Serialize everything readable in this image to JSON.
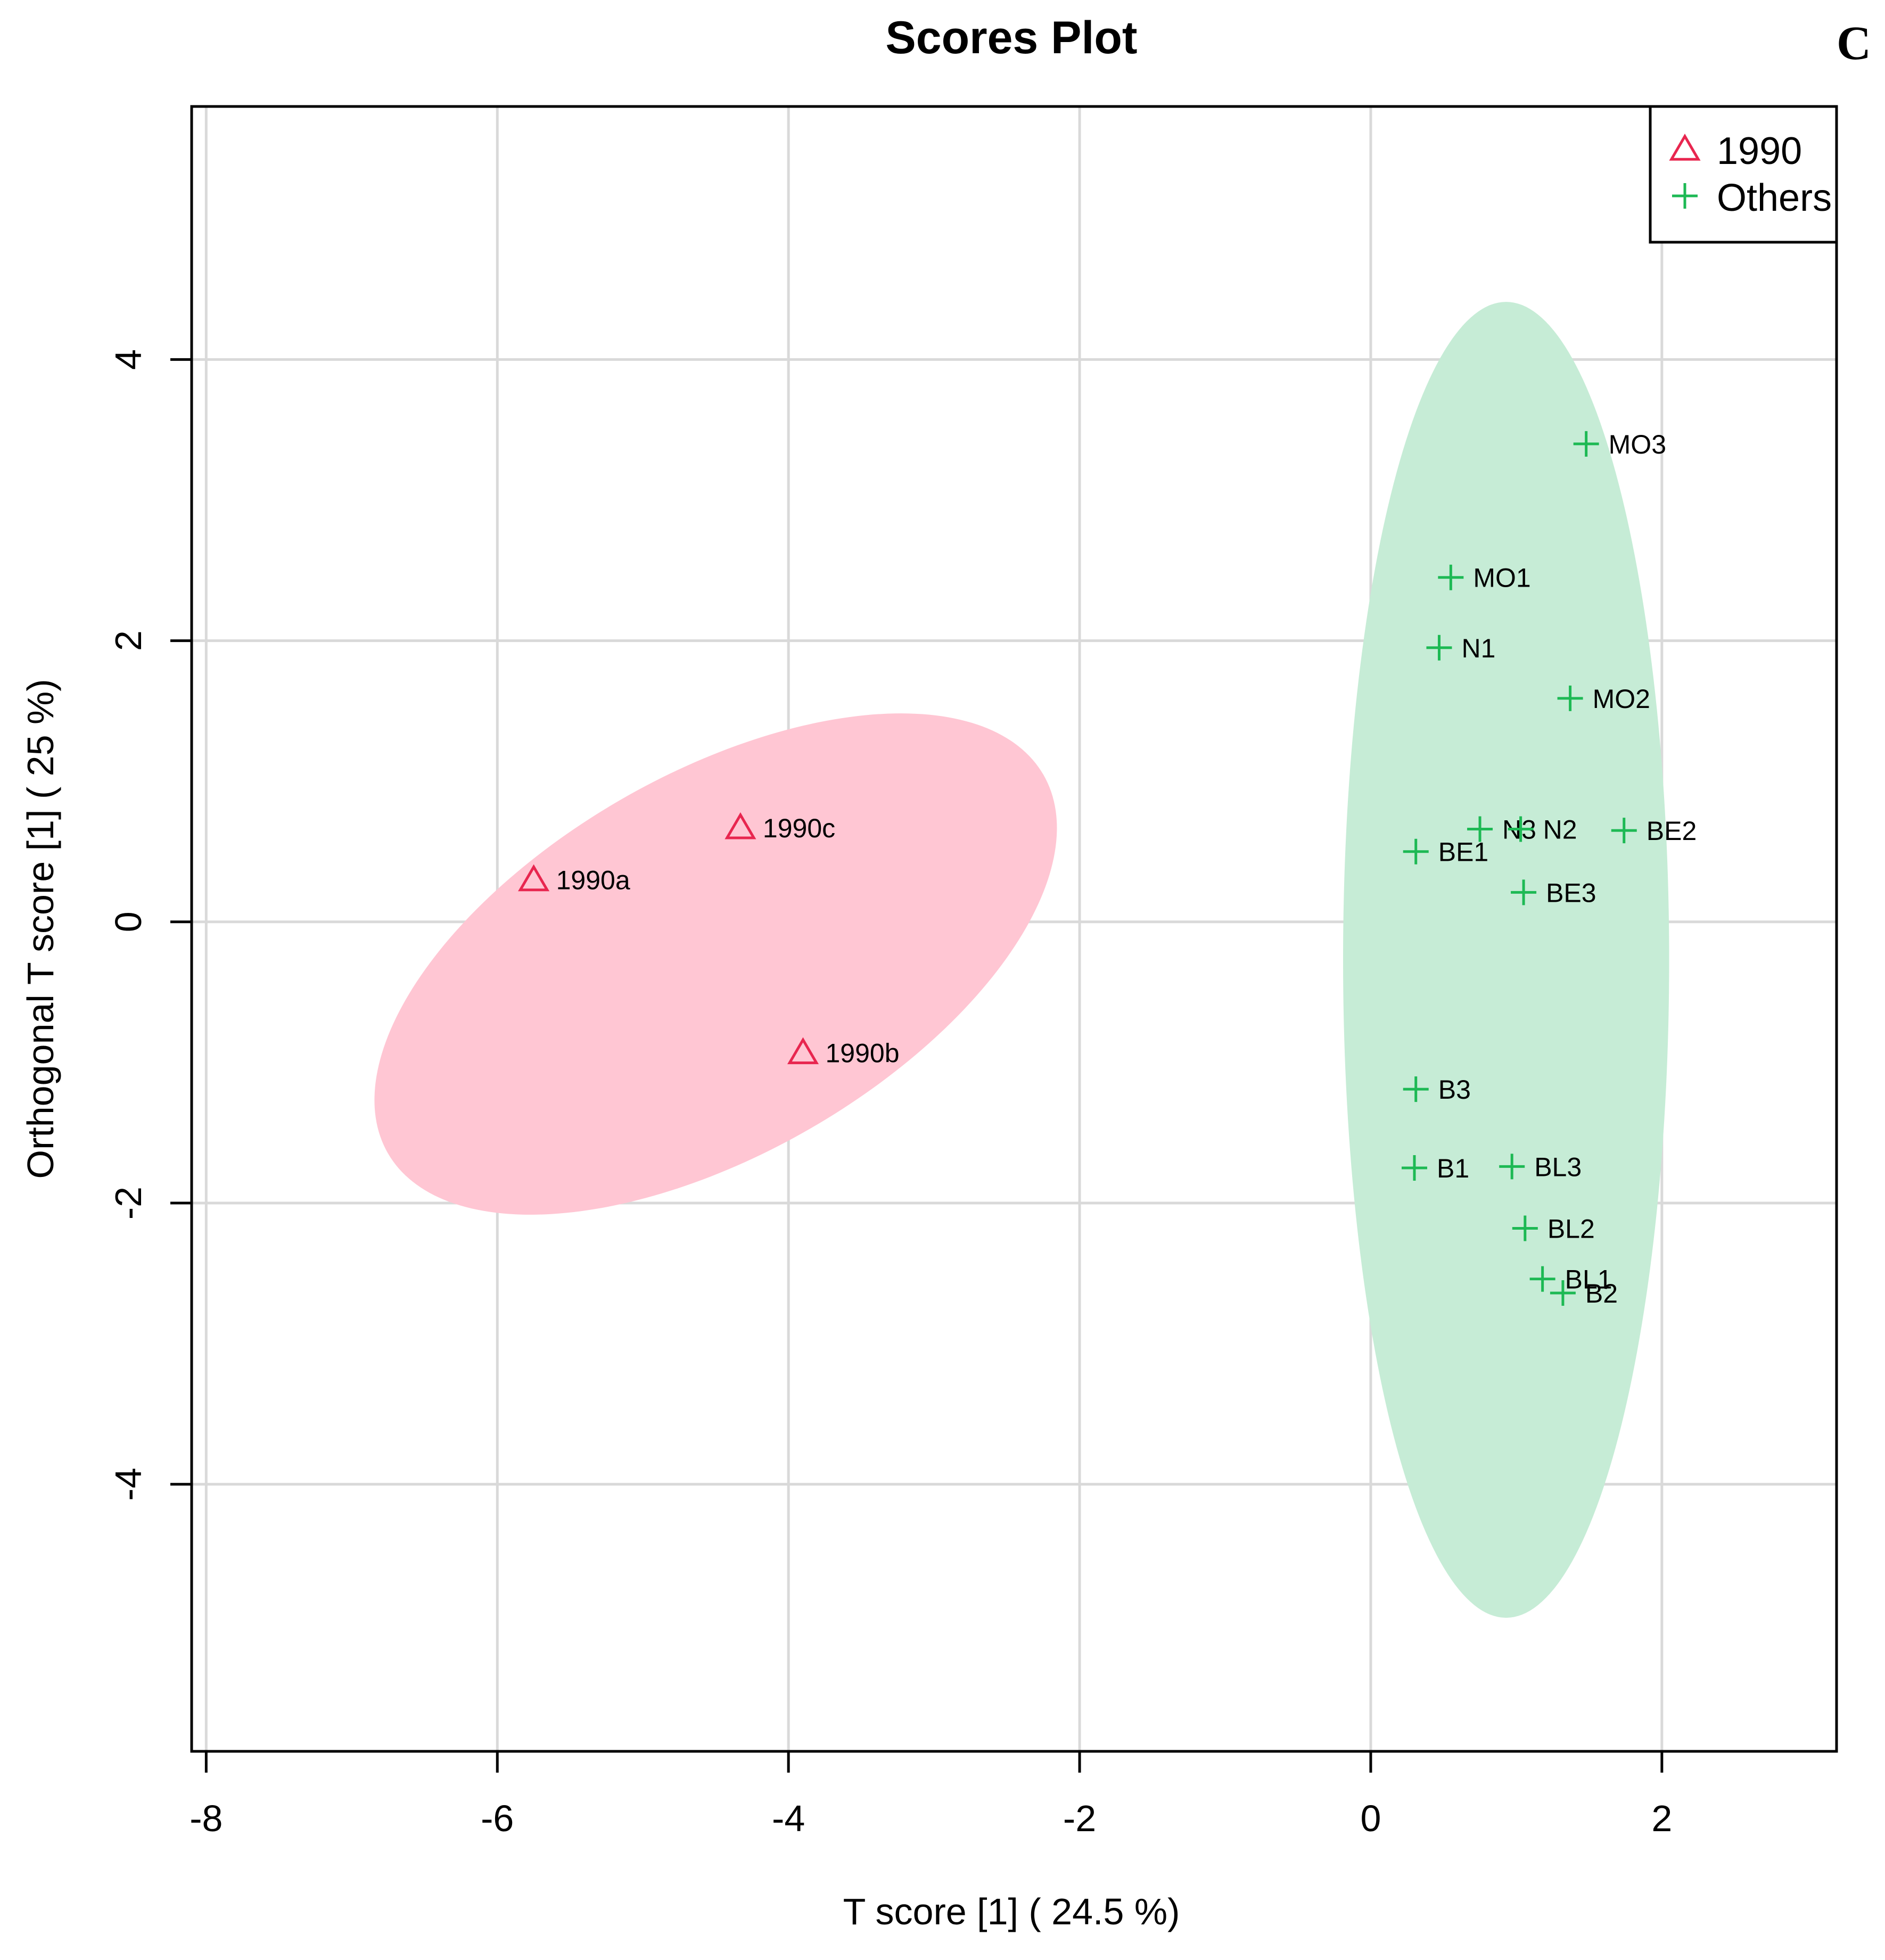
{
  "panel_label": "C",
  "colors": {
    "group_1990": "#e8264f",
    "group_1990_fill": "#ffc6d3",
    "group_others": "#1db954",
    "group_others_fill": "#c6ecd6",
    "grid": "#d9d9d9",
    "axis": "#000000"
  },
  "chart_data": {
    "type": "scatter",
    "title": "Scores Plot",
    "xlabel": "T score [1] ( 24.5 %)",
    "ylabel": "Orthogonal T score [1] ( 25 %)",
    "xlim": [
      -8.1,
      3.2
    ],
    "ylim": [
      -5.9,
      5.8
    ],
    "xticks": [
      -8,
      -6,
      -4,
      -2,
      0,
      2
    ],
    "yticks": [
      -4,
      -2,
      0,
      2,
      4
    ],
    "grid": true,
    "legend_position": "top-right",
    "legend": [
      {
        "label": "1990",
        "marker": "triangle",
        "color": "#e8264f"
      },
      {
        "label": "Others",
        "marker": "plus",
        "color": "#1db954"
      }
    ],
    "ellipses": [
      {
        "group": "1990",
        "cx": -4.5,
        "cy": -0.3,
        "rx": 2.6,
        "ry": 1.35,
        "angle_deg": -30
      },
      {
        "group": "Others",
        "cx": 0.93,
        "cy": -0.27,
        "rx": 1.12,
        "ry": 4.68,
        "angle_deg": 0
      }
    ],
    "series": [
      {
        "name": "1990",
        "marker": "triangle",
        "points": [
          {
            "label": "1990a",
            "x": -5.75,
            "y": 0.3
          },
          {
            "label": "1990c",
            "x": -4.33,
            "y": 0.67
          },
          {
            "label": "1990b",
            "x": -3.9,
            "y": -0.93
          }
        ]
      },
      {
        "name": "Others",
        "marker": "plus",
        "points": [
          {
            "label": "MO3",
            "x": 1.48,
            "y": 3.4
          },
          {
            "label": "MO1",
            "x": 0.55,
            "y": 2.45
          },
          {
            "label": "N1",
            "x": 0.47,
            "y": 1.95
          },
          {
            "label": "MO2",
            "x": 1.37,
            "y": 1.59
          },
          {
            "label": "N3",
            "x": 0.75,
            "y": 0.66
          },
          {
            "label": "N2",
            "x": 1.03,
            "y": 0.66
          },
          {
            "label": "BE2",
            "x": 1.74,
            "y": 0.65
          },
          {
            "label": "BE1",
            "x": 0.31,
            "y": 0.5
          },
          {
            "label": "BE3",
            "x": 1.05,
            "y": 0.21
          },
          {
            "label": "B3",
            "x": 0.31,
            "y": -1.19
          },
          {
            "label": "B1",
            "x": 0.3,
            "y": -1.75
          },
          {
            "label": "BL3",
            "x": 0.97,
            "y": -1.74
          },
          {
            "label": "BL2",
            "x": 1.06,
            "y": -2.18
          },
          {
            "label": "BL1",
            "x": 1.18,
            "y": -2.54
          },
          {
            "label": "B2",
            "x": 1.32,
            "y": -2.64
          }
        ]
      }
    ]
  }
}
